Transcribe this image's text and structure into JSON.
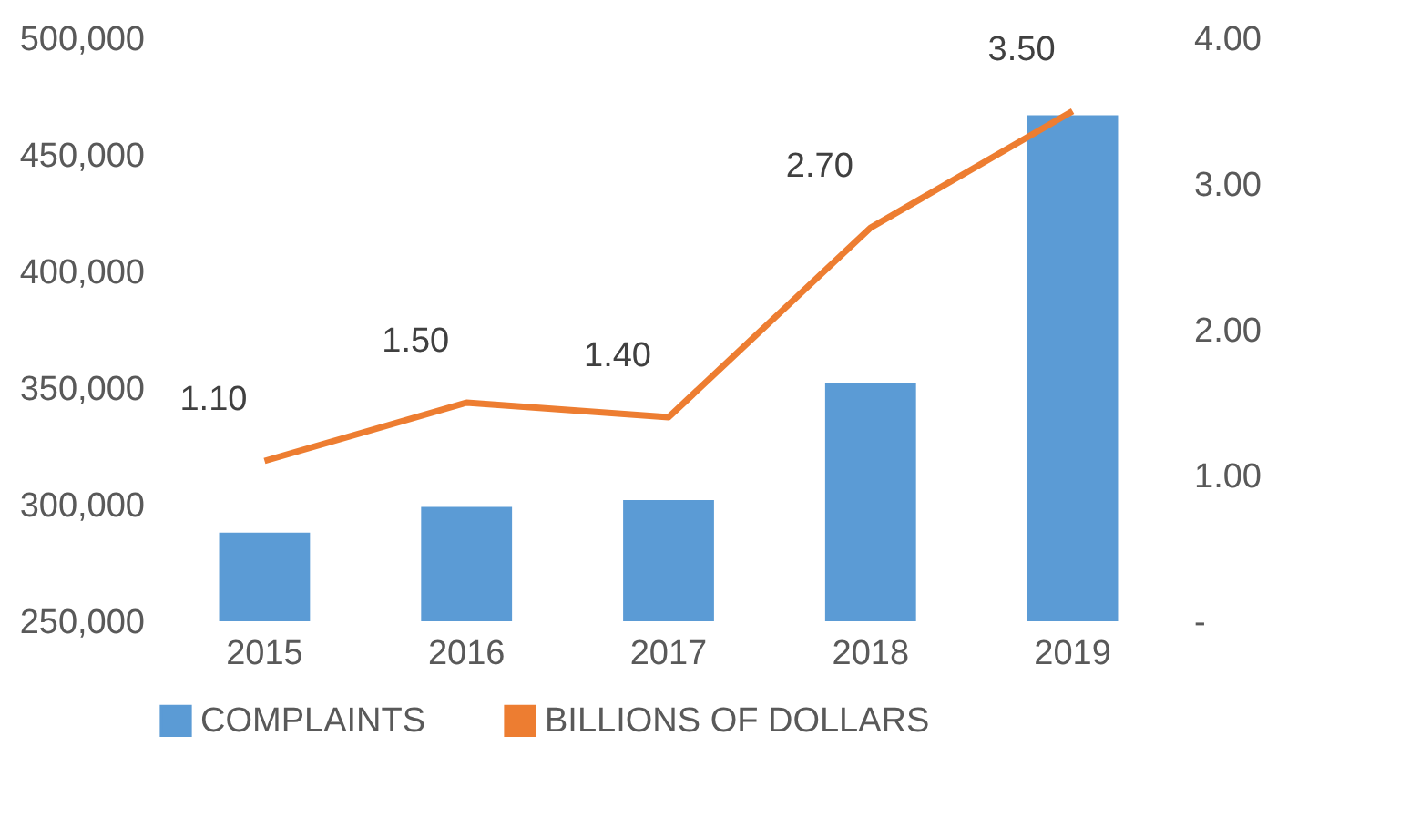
{
  "chart_data": {
    "type": "bar",
    "categories": [
      "2015",
      "2016",
      "2017",
      "2018",
      "2019"
    ],
    "series": [
      {
        "name": "COMPLAINTS",
        "color": "#5b9bd5",
        "values": [
          288000,
          299000,
          302000,
          352000,
          467000
        ]
      },
      {
        "name": "BILLIONS OF DOLLARS",
        "type": "line",
        "axis": "y2",
        "color": "#ed7d31",
        "values": [
          1.1,
          1.5,
          1.4,
          2.7,
          3.5
        ],
        "value_labels": [
          "1.10",
          "1.50",
          "1.40",
          "2.70",
          "3.50"
        ]
      }
    ],
    "ylim": [
      250000,
      500000
    ],
    "yticks": [
      {
        "value": 250000,
        "label": "250,000"
      },
      {
        "value": 300000,
        "label": "300,000"
      },
      {
        "value": 350000,
        "label": "350,000"
      },
      {
        "value": 400000,
        "label": "400,000"
      },
      {
        "value": 450000,
        "label": "450,000"
      },
      {
        "value": 500000,
        "label": "500,000"
      }
    ],
    "y2lim": [
      0,
      4
    ],
    "y2ticks": [
      {
        "value": 0,
        "label": "-"
      },
      {
        "value": 1,
        "label": "1.00"
      },
      {
        "value": 2,
        "label": "2.00"
      },
      {
        "value": 3,
        "label": "3.00"
      },
      {
        "value": 4,
        "label": "4.00"
      }
    ],
    "legend": "bottom",
    "grid": false,
    "marker": "none"
  }
}
